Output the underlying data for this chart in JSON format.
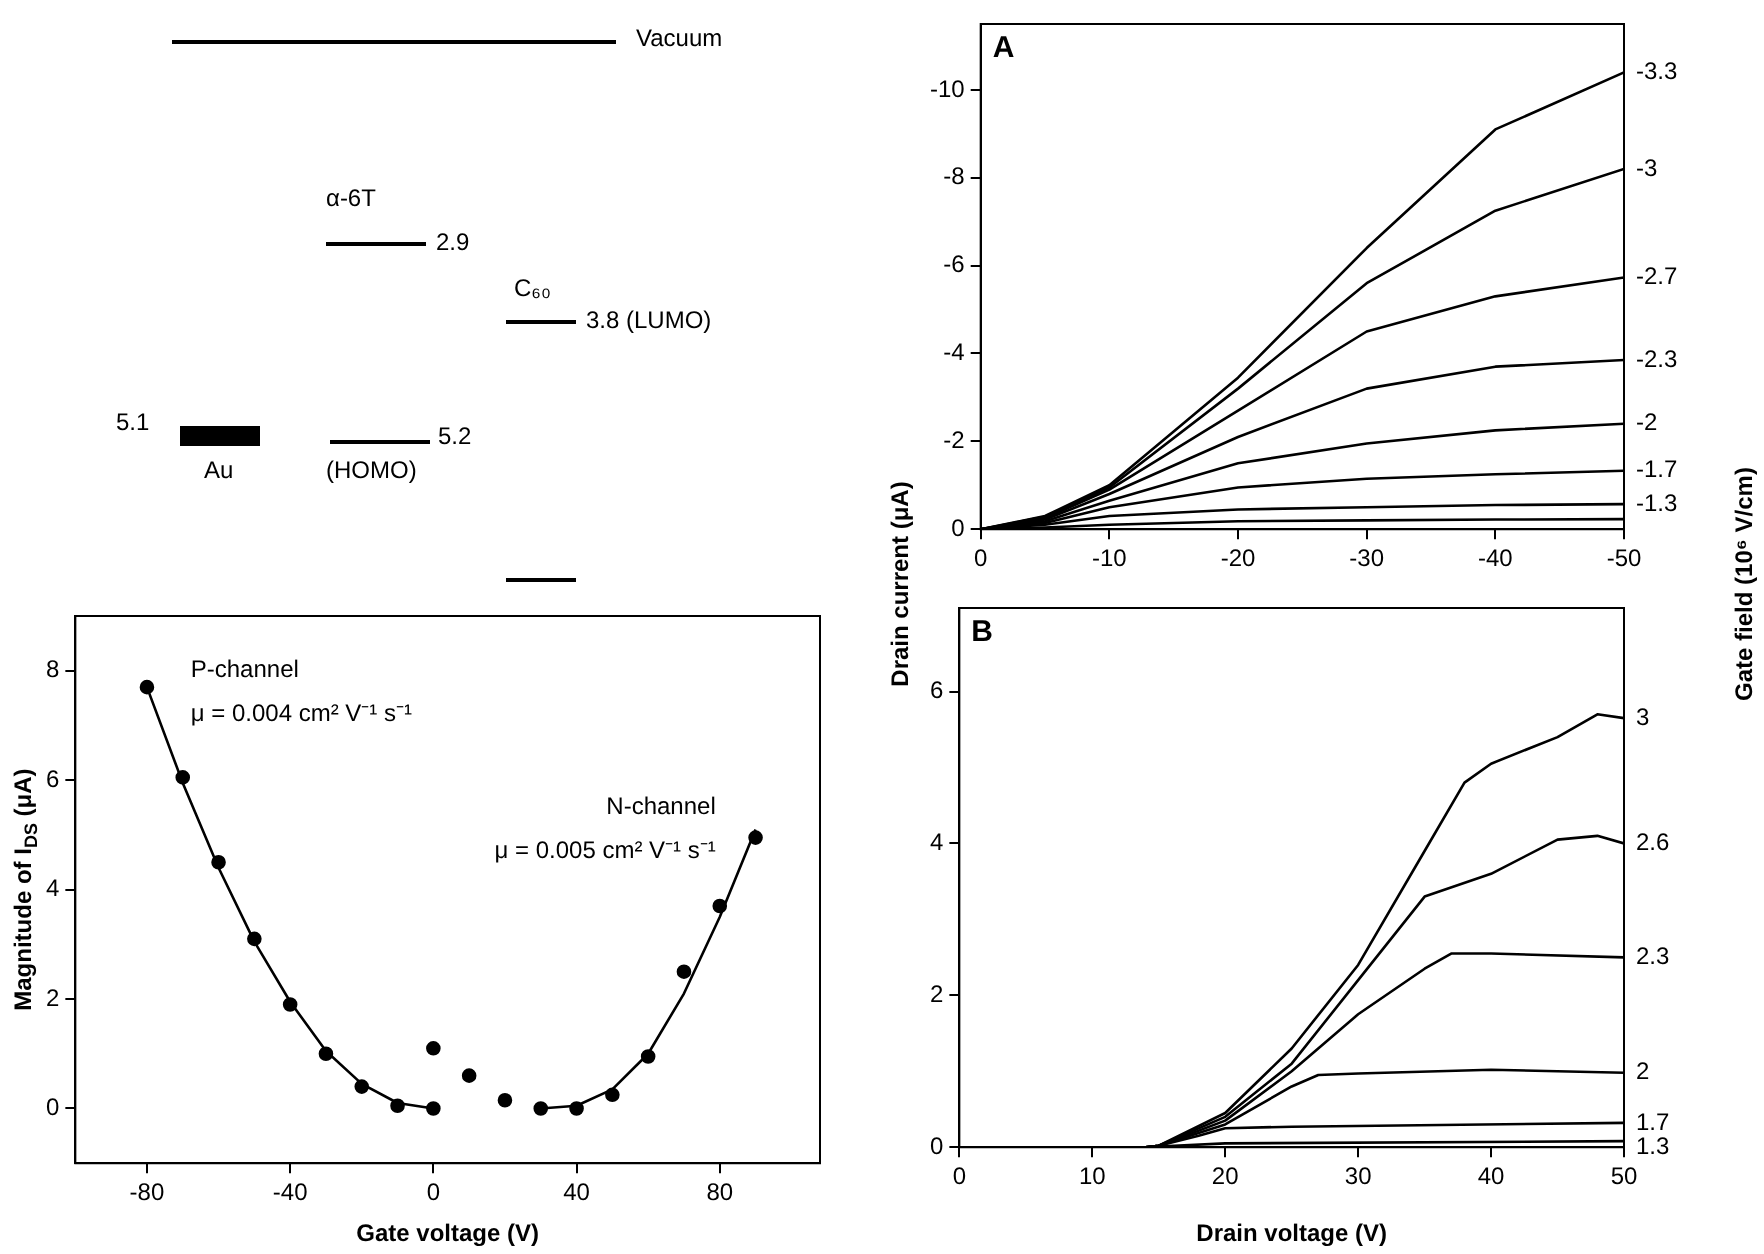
{
  "chart_data": [
    {
      "type": "other",
      "annotations": [
        "Vacuum",
        "α-6T",
        "2.9",
        "C₆₀",
        "3.8 (LUMO)",
        "5.1",
        "Au",
        "5.2",
        "(HOMO)"
      ]
    },
    {
      "type": "scatter",
      "xlabel": "Gate voltage (V)",
      "ylabel": "Magnitude of I$_{DS}$ (μA)",
      "xlim": [
        -100,
        108
      ],
      "xticks": [
        -80,
        -40,
        0,
        40,
        80
      ],
      "ylim": [
        -1,
        9
      ],
      "yticks": [
        0,
        2,
        4,
        6,
        8
      ],
      "grid": false,
      "legend": false,
      "annotations": [
        "P-channel",
        "μ = 0.004 cm² V⁻¹ s⁻¹",
        "N-channel",
        "μ = 0.005 cm² V⁻¹ s⁻¹"
      ],
      "series": [
        {
          "type": "scatter",
          "marker": "circle",
          "color": "#000000",
          "x": [
            -80,
            -70,
            -60,
            -50,
            -40,
            -30,
            -20,
            -10,
            0,
            0,
            10,
            20,
            30,
            40,
            50,
            60,
            70,
            80,
            90
          ],
          "values": [
            7.7,
            6.05,
            4.5,
            3.1,
            1.9,
            1.0,
            0.4,
            0.05,
            0.0,
            1.1,
            0.6,
            0.15,
            0.0,
            0.0,
            0.25,
            0.95,
            2.5,
            3.7,
            4.95
          ]
        },
        {
          "type": "line",
          "marker": "none",
          "color": "#000000",
          "x": [
            -80,
            -70,
            -60,
            -50,
            -40,
            -30,
            -20,
            -10,
            0
          ],
          "values": [
            7.7,
            5.95,
            4.4,
            3.05,
            1.95,
            1.05,
            0.45,
            0.1,
            0
          ]
        },
        {
          "type": "line",
          "marker": "none",
          "color": "#000000",
          "x": [
            30,
            40,
            50,
            60,
            70,
            80,
            90
          ],
          "values": [
            0,
            0.05,
            0.35,
            1.0,
            2.1,
            3.5,
            5.1
          ]
        }
      ]
    },
    {
      "type": "line",
      "title": "A",
      "ylabel": "Drain current (μA)",
      "y2label": "Gate field (10⁶ V/cm)",
      "xlim": [
        0,
        -50
      ],
      "xticks": [
        0,
        -10,
        -20,
        -30,
        -40,
        -50
      ],
      "ylim": [
        0,
        -11.5
      ],
      "yticks": [
        0,
        -2,
        -4,
        -6,
        -8,
        -10
      ],
      "grid": false,
      "legend": false,
      "marker": "none",
      "x": [
        0,
        -5,
        -10,
        -20,
        -30,
        -40,
        -50
      ],
      "series": [
        {
          "name": "-3.3",
          "color": "#000000",
          "values": [
            0,
            -0.3,
            -1.0,
            -3.45,
            -6.4,
            -9.1,
            -10.4
          ]
        },
        {
          "name": "-3",
          "color": "#000000",
          "values": [
            0,
            -0.28,
            -0.95,
            -3.2,
            -5.6,
            -7.25,
            -8.2
          ]
        },
        {
          "name": "-2.7",
          "color": "#000000",
          "values": [
            0,
            -0.25,
            -0.9,
            -2.7,
            -4.5,
            -5.3,
            -5.73
          ]
        },
        {
          "name": "-2.3",
          "color": "#000000",
          "values": [
            0,
            -0.22,
            -0.8,
            -2.1,
            -3.2,
            -3.7,
            -3.85
          ]
        },
        {
          "name": "-2",
          "color": "#000000",
          "values": [
            0,
            -0.18,
            -0.65,
            -1.5,
            -1.95,
            -2.25,
            -2.4
          ]
        },
        {
          "name": "-1.7",
          "color": "#000000",
          "values": [
            0,
            -0.14,
            -0.5,
            -0.95,
            -1.15,
            -1.25,
            -1.33
          ]
        },
        {
          "name": "-1.3",
          "color": "#000000",
          "values": [
            0,
            -0.1,
            -0.3,
            -0.45,
            -0.5,
            -0.55,
            -0.57
          ]
        },
        {
          "color": "#000000",
          "values": [
            0,
            -0.04,
            -0.1,
            -0.18,
            -0.2,
            -0.22,
            -0.23
          ]
        }
      ]
    },
    {
      "type": "line",
      "title": "B",
      "xlabel": "Drain voltage (V)",
      "xlim": [
        0,
        50
      ],
      "xticks": [
        0,
        10,
        20,
        30,
        40,
        50
      ],
      "ylim": [
        0,
        7.1
      ],
      "yticks": [
        0,
        2,
        4,
        6
      ],
      "grid": false,
      "legend": false,
      "marker": "none",
      "series": [
        {
          "name": "3",
          "color": "#000000",
          "x": [
            0,
            14,
            15,
            20,
            25,
            30,
            35,
            38,
            40,
            45,
            48,
            50
          ],
          "values": [
            0,
            0,
            0.02,
            0.45,
            1.3,
            2.4,
            3.9,
            4.8,
            5.05,
            5.4,
            5.7,
            5.65
          ]
        },
        {
          "name": "2.6",
          "color": "#000000",
          "x": [
            0,
            14,
            15,
            20,
            25,
            30,
            35,
            40,
            45,
            48,
            50
          ],
          "values": [
            0,
            0,
            0.02,
            0.4,
            1.1,
            2.2,
            3.3,
            3.6,
            4.05,
            4.1,
            4.0
          ]
        },
        {
          "name": "2.3",
          "color": "#000000",
          "x": [
            0,
            14,
            15,
            20,
            25,
            30,
            35,
            37,
            40,
            50
          ],
          "values": [
            0,
            0,
            0.02,
            0.35,
            1.0,
            1.75,
            2.35,
            2.55,
            2.55,
            2.5
          ]
        },
        {
          "name": "2",
          "color": "#000000",
          "x": [
            0,
            14,
            15,
            20,
            25,
            27,
            30,
            40,
            50
          ],
          "values": [
            0,
            0,
            0.02,
            0.3,
            0.8,
            0.95,
            0.97,
            1.02,
            0.98
          ]
        },
        {
          "name": "1.7",
          "color": "#000000",
          "x": [
            0,
            14,
            15,
            18,
            20,
            25,
            50
          ],
          "values": [
            0,
            0,
            0.02,
            0.15,
            0.25,
            0.27,
            0.32
          ]
        },
        {
          "name": "1.3",
          "color": "#000000",
          "x": [
            0,
            14,
            15,
            20,
            50
          ],
          "values": [
            0,
            0,
            0.01,
            0.05,
            0.08
          ]
        }
      ]
    }
  ]
}
